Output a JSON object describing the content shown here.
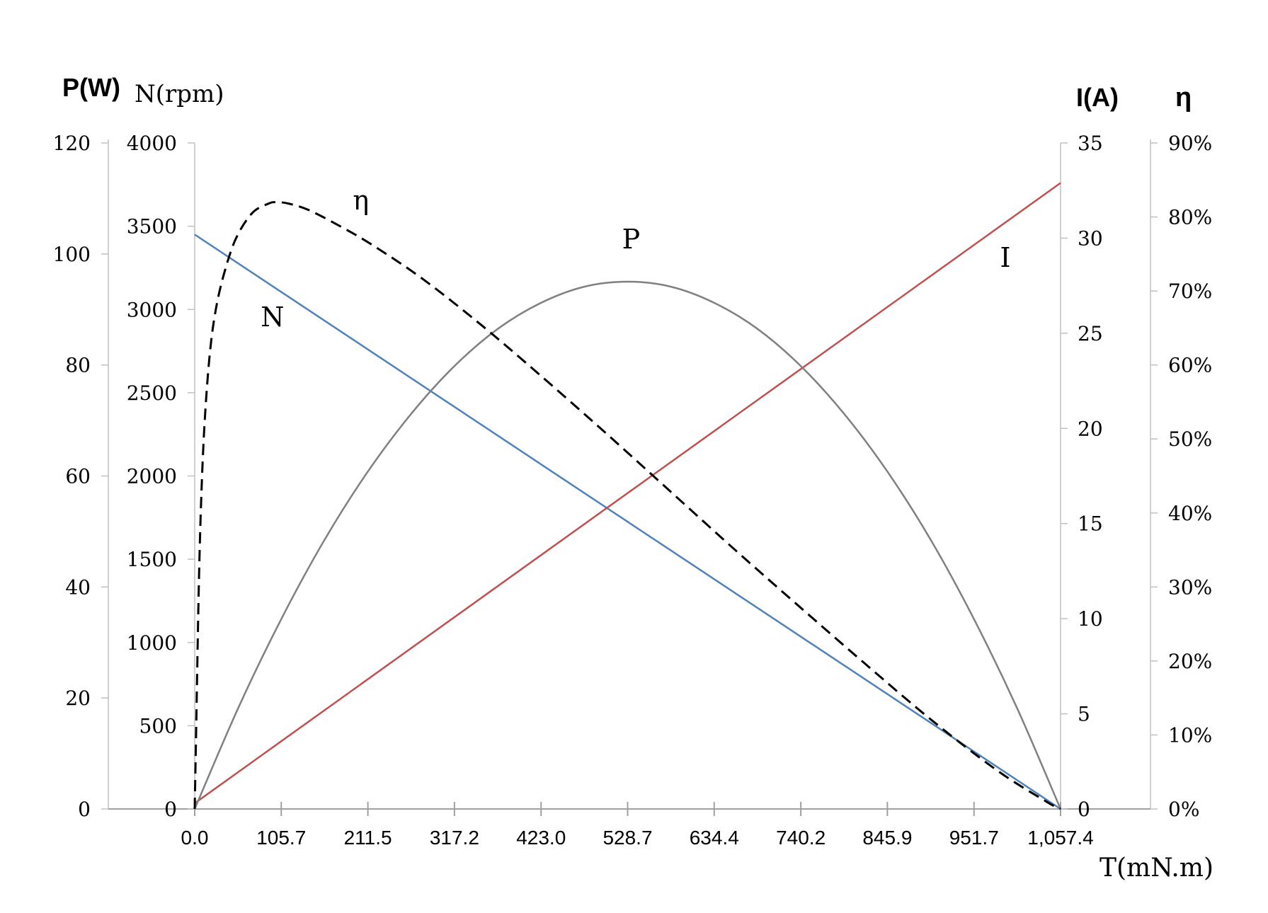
{
  "chart_data": {
    "type": "line",
    "x": [
      0.0,
      105.7,
      211.5,
      317.2,
      423.0,
      528.7,
      634.4,
      740.2,
      845.9,
      951.7,
      1057.4
    ],
    "x_tick_labels": [
      "0.0",
      "105.7",
      "211.5",
      "317.2",
      "423.0",
      "528.7",
      "634.4",
      "740.2",
      "845.9",
      "951.7",
      "1,057.4"
    ],
    "xlabel": "T(mN.m)",
    "xlim": [
      0,
      1057.4
    ],
    "axes": {
      "power": {
        "label": "P(W)",
        "ylim": [
          0,
          120
        ],
        "ticks": [
          "0",
          "20",
          "40",
          "60",
          "80",
          "100",
          "120"
        ]
      },
      "speed": {
        "label": "N(rpm)",
        "ylim": [
          0,
          4000
        ],
        "ticks": [
          "0",
          "500",
          "1000",
          "1500",
          "2000",
          "2500",
          "3000",
          "3500",
          "4000"
        ]
      },
      "current": {
        "label": "I(A)",
        "ylim": [
          0,
          35
        ],
        "ticks": [
          "0",
          "5",
          "10",
          "15",
          "20",
          "25",
          "30",
          "35"
        ]
      },
      "efficiency": {
        "label": "η",
        "ylim": [
          0,
          90
        ],
        "ticks": [
          "0%",
          "10%",
          "20%",
          "30%",
          "40%",
          "50%",
          "60%",
          "70%",
          "80%",
          "90%"
        ]
      }
    },
    "series": [
      {
        "name": "N",
        "axis": "speed",
        "color": "#4f81bd",
        "dash": false,
        "x": [
          0,
          1057.4
        ],
        "values": [
          3450,
          0
        ]
      },
      {
        "name": "I",
        "axis": "current",
        "color": "#c0504d",
        "dash": false,
        "x": [
          0,
          1057.4
        ],
        "values": [
          0.3,
          32.9
        ]
      },
      {
        "name": "P",
        "axis": "power",
        "color": "#808080",
        "dash": false,
        "x": [
          0.0,
          52.9,
          105.7,
          158.6,
          211.5,
          264.4,
          317.2,
          370.1,
          423.0,
          475.8,
          528.7,
          581.6,
          634.4,
          687.3,
          740.2,
          793.1,
          845.9,
          898.8,
          951.7,
          1004.5,
          1057.4
        ],
        "values": [
          0.0,
          18.1,
          34.2,
          48.5,
          60.8,
          71.2,
          79.8,
          86.5,
          91.2,
          94.1,
          95.0,
          94.1,
          91.2,
          86.5,
          79.8,
          71.2,
          60.8,
          48.5,
          34.2,
          18.1,
          0.0
        ]
      },
      {
        "name": "η",
        "axis": "efficiency",
        "color": "#000000",
        "dash": true,
        "x": [
          0,
          2,
          5,
          8,
          12,
          18,
          25,
          35,
          50,
          70,
          90,
          100,
          115,
          140,
          180,
          220,
          280,
          350,
          420,
          500,
          580,
          660,
          740,
          820,
          900,
          980,
          1040,
          1057.4
        ],
        "values": [
          0,
          12,
          30,
          42,
          52,
          61,
          67,
          72,
          77,
          80.5,
          81.8,
          82,
          81.8,
          80.9,
          78.6,
          76,
          71.5,
          65.4,
          58.8,
          51,
          43,
          35,
          27.2,
          19.5,
          12,
          5.2,
          1,
          0
        ]
      }
    ],
    "annotations": [
      {
        "text": "N",
        "series": "N",
        "x": 95,
        "y": 2900
      },
      {
        "text": "η",
        "series": "η",
        "x": 203,
        "y": 81
      },
      {
        "text": "P",
        "series": "P",
        "x": 533,
        "y": 101
      },
      {
        "text": "I",
        "series": "I",
        "x": 990,
        "y": 28.5
      }
    ],
    "legend": "none",
    "grid": false
  }
}
